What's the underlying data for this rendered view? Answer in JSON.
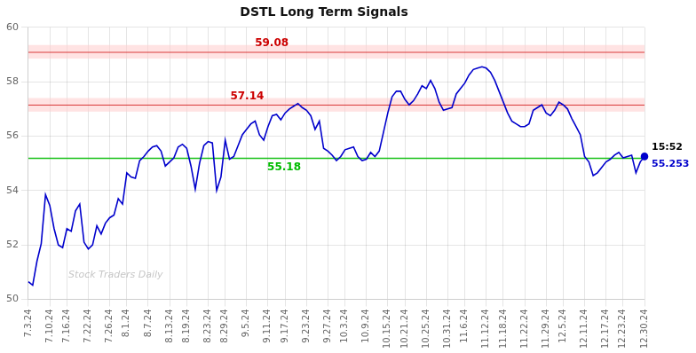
{
  "chart_data": {
    "type": "line",
    "title": "DSTL Long Term Signals",
    "categories": [
      "7.3.24",
      null,
      null,
      null,
      null,
      "7.10.24",
      null,
      null,
      null,
      "7.16.24",
      null,
      null,
      null,
      null,
      "7.22.24",
      null,
      null,
      null,
      null,
      "7.26.24",
      null,
      null,
      null,
      "8.1.24",
      null,
      null,
      null,
      null,
      "8.7.24",
      null,
      null,
      null,
      null,
      "8.13.24",
      null,
      null,
      null,
      "8.19.24",
      null,
      null,
      null,
      null,
      "8.23.24",
      null,
      null,
      null,
      "8.29.24",
      null,
      null,
      null,
      null,
      "9.5.24",
      null,
      null,
      null,
      null,
      "9.11.24",
      null,
      null,
      null,
      "9.17.24",
      null,
      null,
      null,
      null,
      "9.23.24",
      null,
      null,
      null,
      null,
      "9.27.24",
      null,
      null,
      null,
      "10.3.24",
      null,
      null,
      null,
      null,
      "10.9.24",
      null,
      null,
      null,
      null,
      "10.15.24",
      null,
      null,
      null,
      "10.21.24",
      null,
      null,
      null,
      null,
      "10.25.24",
      null,
      null,
      null,
      null,
      "10.31.24",
      null,
      null,
      null,
      "11.6.24",
      null,
      null,
      null,
      null,
      "11.12.24",
      null,
      null,
      null,
      "11.18.24",
      null,
      null,
      null,
      null,
      "11.22.24",
      null,
      null,
      null,
      null,
      "11.29.24",
      null,
      null,
      null,
      "12.5.24",
      null,
      null,
      null,
      null,
      "12.11.24",
      null,
      null,
      null,
      null,
      "12.17.24",
      null,
      null,
      null,
      "12.23.24",
      null,
      null,
      null,
      null,
      "12.30.24"
    ],
    "values": [
      50.65,
      50.52,
      51.4,
      52.05,
      53.85,
      53.45,
      52.6,
      52.0,
      51.9,
      52.6,
      52.5,
      53.25,
      53.5,
      52.1,
      51.85,
      52.0,
      52.7,
      52.4,
      52.8,
      53.0,
      53.1,
      53.7,
      53.5,
      54.65,
      54.5,
      54.45,
      55.1,
      55.25,
      55.45,
      55.6,
      55.65,
      55.45,
      54.9,
      55.05,
      55.2,
      55.6,
      55.7,
      55.55,
      54.9,
      54.05,
      55.0,
      55.65,
      55.8,
      55.75,
      54.0,
      54.5,
      55.85,
      55.15,
      55.25,
      55.65,
      56.05,
      56.25,
      56.45,
      56.55,
      56.05,
      55.85,
      56.35,
      56.75,
      56.8,
      56.6,
      56.85,
      57.0,
      57.1,
      57.2,
      57.05,
      56.95,
      56.75,
      56.25,
      56.55,
      55.55,
      55.45,
      55.3,
      55.1,
      55.25,
      55.5,
      55.55,
      55.6,
      55.25,
      55.1,
      55.15,
      55.4,
      55.25,
      55.45,
      56.15,
      56.85,
      57.45,
      57.65,
      57.65,
      57.35,
      57.15,
      57.3,
      57.55,
      57.85,
      57.75,
      58.05,
      57.75,
      57.25,
      56.95,
      57.0,
      57.05,
      57.55,
      57.75,
      57.95,
      58.25,
      58.45,
      58.5,
      58.55,
      58.5,
      58.35,
      58.05,
      57.65,
      57.25,
      56.85,
      56.55,
      56.45,
      56.35,
      56.35,
      56.45,
      56.95,
      57.05,
      57.15,
      56.85,
      56.75,
      56.95,
      57.25,
      57.15,
      57.0,
      56.65,
      56.35,
      56.05,
      55.25,
      55.05,
      54.55,
      54.65,
      54.85,
      55.05,
      55.15,
      55.3,
      55.4,
      55.2,
      55.25,
      55.3,
      54.65,
      55.05,
      55.253
    ],
    "color": "#0000cc",
    "ylim": [
      50,
      60
    ],
    "yticks": [
      50,
      52,
      54,
      56,
      58,
      60
    ],
    "grid": true,
    "hlines": [
      {
        "value": 59.08,
        "label": "59.08",
        "color": "#cc0000",
        "band": [
          58.85,
          59.35
        ],
        "band_color": "#ffcccc"
      },
      {
        "value": 57.14,
        "label": "57.14",
        "color": "#cc0000",
        "band": [
          56.9,
          57.4
        ],
        "band_color": "#ffcccc"
      },
      {
        "value": 55.18,
        "label": "55.18",
        "color": "#00bb00"
      }
    ],
    "last_point_labels": [
      "15:52",
      "55.253"
    ],
    "watermark": "Stock Traders Daily"
  }
}
